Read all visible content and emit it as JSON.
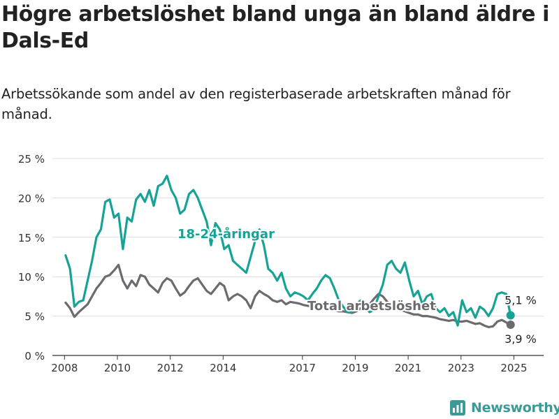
{
  "title": "Högre arbetslöshet bland unga än bland äldre i Dals-Ed",
  "subtitle": "Arbetssökande som andel av den registerbaserade arbetskraften månad för månad.",
  "logo": {
    "text": "Newsworthy",
    "icon": "bar-chart-icon"
  },
  "colors": {
    "youth": "#16a396",
    "total": "#6b6b6f",
    "grid": "#dddddd",
    "axis": "#333333",
    "brand": "#3a9a95"
  },
  "chart_data": {
    "type": "line",
    "title": "Högre arbetslöshet bland unga än bland äldre i Dals-Ed",
    "subtitle": "Arbetssökande som andel av den registerbaserade arbetskraften månad för månad.",
    "xlabel": "",
    "ylabel": "",
    "x_ticks": [
      "2008",
      "2010",
      "2012",
      "2014",
      "2017",
      "2019",
      "2021",
      "2023",
      "2025"
    ],
    "y_ticks": [
      "0 %",
      "5 %",
      "10 %",
      "15 %",
      "20 %",
      "25 %"
    ],
    "ylim": [
      0,
      25
    ],
    "xlim": [
      "2007-07",
      "2026-02"
    ],
    "grid": true,
    "legend": "inline labels",
    "series": [
      {
        "name": "18-24-åringar",
        "color": "#16a396",
        "end_label": "5,1 %",
        "points": [
          [
            "2008-01",
            12.7
          ],
          [
            "2008-03",
            11.0
          ],
          [
            "2008-05",
            6.2
          ],
          [
            "2008-07",
            6.8
          ],
          [
            "2008-09",
            7.0
          ],
          [
            "2008-11",
            9.5
          ],
          [
            "2009-01",
            12.0
          ],
          [
            "2009-03",
            15.0
          ],
          [
            "2009-05",
            16.0
          ],
          [
            "2009-07",
            19.5
          ],
          [
            "2009-09",
            19.8
          ],
          [
            "2009-11",
            17.5
          ],
          [
            "2010-01",
            18.0
          ],
          [
            "2010-03",
            13.5
          ],
          [
            "2010-05",
            17.5
          ],
          [
            "2010-07",
            17.0
          ],
          [
            "2010-09",
            19.8
          ],
          [
            "2010-11",
            20.5
          ],
          [
            "2011-01",
            19.5
          ],
          [
            "2011-03",
            21.0
          ],
          [
            "2011-05",
            19.0
          ],
          [
            "2011-07",
            21.5
          ],
          [
            "2011-09",
            21.8
          ],
          [
            "2011-11",
            22.8
          ],
          [
            "2012-01",
            21.0
          ],
          [
            "2012-03",
            20.0
          ],
          [
            "2012-05",
            18.0
          ],
          [
            "2012-07",
            18.5
          ],
          [
            "2012-09",
            20.5
          ],
          [
            "2012-11",
            21.0
          ],
          [
            "2013-01",
            20.0
          ],
          [
            "2013-03",
            18.5
          ],
          [
            "2013-05",
            17.0
          ],
          [
            "2013-07",
            14.0
          ],
          [
            "2013-09",
            16.8
          ],
          [
            "2013-11",
            16.0
          ],
          [
            "2014-01",
            13.5
          ],
          [
            "2014-03",
            14.0
          ],
          [
            "2014-05",
            12.0
          ],
          [
            "2014-07",
            11.5
          ],
          [
            "2014-09",
            11.0
          ],
          [
            "2014-11",
            10.5
          ],
          [
            "2015-01",
            12.5
          ],
          [
            "2015-03",
            14.5
          ],
          [
            "2015-05",
            16.0
          ],
          [
            "2015-07",
            14.0
          ],
          [
            "2015-09",
            11.0
          ],
          [
            "2015-11",
            10.5
          ],
          [
            "2016-01",
            9.5
          ],
          [
            "2016-03",
            10.5
          ],
          [
            "2016-05",
            8.5
          ],
          [
            "2016-07",
            7.5
          ],
          [
            "2016-09",
            8.0
          ],
          [
            "2016-11",
            7.8
          ],
          [
            "2017-01",
            7.5
          ],
          [
            "2017-03",
            7.0
          ],
          [
            "2017-05",
            7.8
          ],
          [
            "2017-07",
            8.5
          ],
          [
            "2017-09",
            9.5
          ],
          [
            "2017-11",
            10.2
          ],
          [
            "2018-01",
            9.8
          ],
          [
            "2018-03",
            8.5
          ],
          [
            "2018-05",
            7.0
          ],
          [
            "2018-07",
            6.2
          ],
          [
            "2018-09",
            5.5
          ],
          [
            "2018-11",
            5.5
          ],
          [
            "2019-01",
            6.5
          ],
          [
            "2019-03",
            7.0
          ],
          [
            "2019-05",
            6.0
          ],
          [
            "2019-07",
            5.5
          ],
          [
            "2019-09",
            5.8
          ],
          [
            "2019-11",
            7.5
          ],
          [
            "2020-01",
            9.0
          ],
          [
            "2020-03",
            11.5
          ],
          [
            "2020-05",
            12.0
          ],
          [
            "2020-07",
            11.0
          ],
          [
            "2020-09",
            10.5
          ],
          [
            "2020-11",
            11.8
          ],
          [
            "2021-01",
            9.5
          ],
          [
            "2021-03",
            7.5
          ],
          [
            "2021-05",
            8.2
          ],
          [
            "2021-07",
            6.5
          ],
          [
            "2021-09",
            7.5
          ],
          [
            "2021-11",
            7.8
          ],
          [
            "2022-01",
            6.0
          ],
          [
            "2022-03",
            5.5
          ],
          [
            "2022-05",
            6.0
          ],
          [
            "2022-07",
            5.0
          ],
          [
            "2022-09",
            5.5
          ],
          [
            "2022-11",
            3.8
          ],
          [
            "2023-01",
            7.0
          ],
          [
            "2023-03",
            5.5
          ],
          [
            "2023-05",
            6.0
          ],
          [
            "2023-07",
            4.8
          ],
          [
            "2023-09",
            6.2
          ],
          [
            "2023-11",
            5.8
          ],
          [
            "2024-01",
            5.0
          ],
          [
            "2024-03",
            6.0
          ],
          [
            "2024-05",
            7.8
          ],
          [
            "2024-07",
            8.0
          ],
          [
            "2024-09",
            7.8
          ],
          [
            "2024-11",
            5.1
          ]
        ]
      },
      {
        "name": "Total arbetslöshet",
        "color": "#6b6b6f",
        "end_label": "3,9 %",
        "points": [
          [
            "2008-01",
            6.7
          ],
          [
            "2008-03",
            6.0
          ],
          [
            "2008-05",
            4.9
          ],
          [
            "2008-07",
            5.5
          ],
          [
            "2008-09",
            6.0
          ],
          [
            "2008-11",
            6.5
          ],
          [
            "2009-01",
            7.5
          ],
          [
            "2009-03",
            8.5
          ],
          [
            "2009-05",
            9.2
          ],
          [
            "2009-07",
            10.0
          ],
          [
            "2009-09",
            10.2
          ],
          [
            "2009-11",
            10.8
          ],
          [
            "2010-01",
            11.5
          ],
          [
            "2010-03",
            9.5
          ],
          [
            "2010-05",
            8.5
          ],
          [
            "2010-07",
            9.5
          ],
          [
            "2010-09",
            8.8
          ],
          [
            "2010-11",
            10.2
          ],
          [
            "2011-01",
            10.0
          ],
          [
            "2011-03",
            9.0
          ],
          [
            "2011-05",
            8.5
          ],
          [
            "2011-07",
            8.0
          ],
          [
            "2011-09",
            9.2
          ],
          [
            "2011-11",
            9.8
          ],
          [
            "2012-01",
            9.5
          ],
          [
            "2012-03",
            8.5
          ],
          [
            "2012-05",
            7.6
          ],
          [
            "2012-07",
            8.0
          ],
          [
            "2012-09",
            8.8
          ],
          [
            "2012-11",
            9.5
          ],
          [
            "2013-01",
            9.8
          ],
          [
            "2013-03",
            9.0
          ],
          [
            "2013-05",
            8.2
          ],
          [
            "2013-07",
            7.8
          ],
          [
            "2013-09",
            8.5
          ],
          [
            "2013-11",
            9.2
          ],
          [
            "2014-01",
            8.8
          ],
          [
            "2014-03",
            7.0
          ],
          [
            "2014-05",
            7.5
          ],
          [
            "2014-07",
            7.8
          ],
          [
            "2014-09",
            7.5
          ],
          [
            "2014-11",
            7.0
          ],
          [
            "2015-01",
            6.0
          ],
          [
            "2015-03",
            7.5
          ],
          [
            "2015-05",
            8.2
          ],
          [
            "2015-07",
            7.8
          ],
          [
            "2015-09",
            7.5
          ],
          [
            "2015-11",
            7.0
          ],
          [
            "2016-01",
            6.8
          ],
          [
            "2016-03",
            7.0
          ],
          [
            "2016-05",
            6.5
          ],
          [
            "2016-07",
            6.8
          ],
          [
            "2016-09",
            6.7
          ],
          [
            "2016-11",
            6.6
          ],
          [
            "2017-01",
            6.4
          ],
          [
            "2017-03",
            6.3
          ],
          [
            "2017-05",
            6.2
          ],
          [
            "2017-07",
            6.0
          ],
          [
            "2017-09",
            6.2
          ],
          [
            "2017-11",
            6.0
          ],
          [
            "2018-01",
            5.9
          ],
          [
            "2018-03",
            5.8
          ],
          [
            "2018-05",
            5.6
          ],
          [
            "2018-07",
            5.6
          ],
          [
            "2018-09",
            5.5
          ],
          [
            "2018-11",
            5.4
          ],
          [
            "2019-01",
            5.6
          ],
          [
            "2019-03",
            6.0
          ],
          [
            "2019-05",
            6.2
          ],
          [
            "2019-07",
            6.5
          ],
          [
            "2019-09",
            7.2
          ],
          [
            "2019-11",
            7.8
          ],
          [
            "2020-01",
            7.5
          ],
          [
            "2020-03",
            6.8
          ],
          [
            "2020-05",
            6.4
          ],
          [
            "2020-07",
            6.0
          ],
          [
            "2020-09",
            5.8
          ],
          [
            "2020-11",
            5.6
          ],
          [
            "2021-01",
            5.4
          ],
          [
            "2021-03",
            5.2
          ],
          [
            "2021-05",
            5.2
          ],
          [
            "2021-07",
            5.0
          ],
          [
            "2021-09",
            5.0
          ],
          [
            "2021-11",
            4.9
          ],
          [
            "2022-01",
            4.8
          ],
          [
            "2022-03",
            4.6
          ],
          [
            "2022-05",
            4.5
          ],
          [
            "2022-07",
            4.4
          ],
          [
            "2022-09",
            4.5
          ],
          [
            "2022-11",
            4.3
          ],
          [
            "2023-01",
            4.3
          ],
          [
            "2023-03",
            4.4
          ],
          [
            "2023-05",
            4.2
          ],
          [
            "2023-07",
            4.0
          ],
          [
            "2023-09",
            4.1
          ],
          [
            "2023-11",
            3.8
          ],
          [
            "2024-01",
            3.6
          ],
          [
            "2024-03",
            3.7
          ],
          [
            "2024-05",
            4.3
          ],
          [
            "2024-07",
            4.5
          ],
          [
            "2024-09",
            4.2
          ],
          [
            "2024-11",
            3.9
          ]
        ]
      }
    ]
  }
}
